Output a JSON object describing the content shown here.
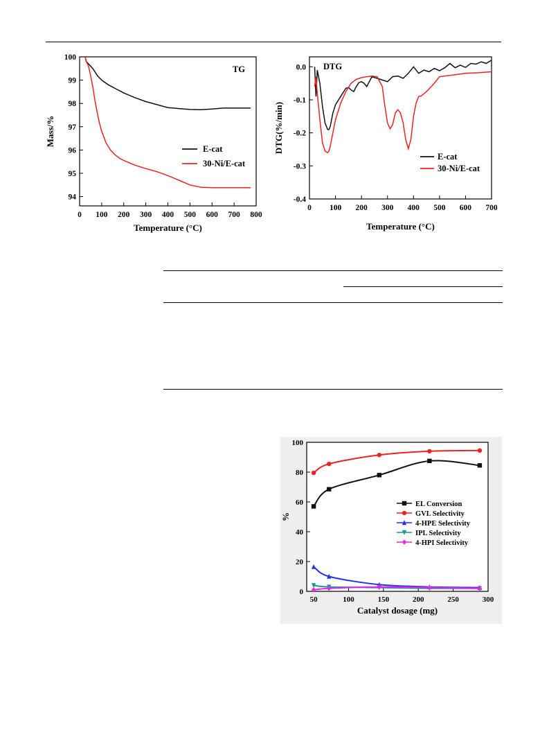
{
  "charts": {
    "tg": {
      "panel_label": "TG",
      "xlabel": "Temperature (°C)",
      "ylabel": "Mass/%",
      "xticks": [
        0,
        100,
        200,
        300,
        400,
        500,
        600,
        700,
        800
      ],
      "yticks": [
        94,
        95,
        96,
        97,
        98,
        99,
        100
      ]
    },
    "dtg": {
      "panel_label": "DTG",
      "xlabel": "Temperature (°C)",
      "ylabel": "DTG(%/min)",
      "xticks": [
        0,
        100,
        200,
        300,
        400,
        500,
        600,
        700
      ],
      "yticks": [
        "-0.4",
        "-0.3",
        "-0.2",
        "-0.1",
        "0.0"
      ]
    },
    "catalyst": {
      "xlabel": "Catalyst dosage (mg)",
      "ylabel": "%",
      "xticks": [
        50,
        100,
        150,
        200,
        250,
        300
      ],
      "yticks": [
        0,
        20,
        40,
        60,
        80,
        100
      ]
    }
  },
  "colors": {
    "black": "#111111",
    "red": "#ee2222",
    "blue": "#2233ee",
    "teal": "#119999",
    "magenta": "#ee22ee"
  },
  "chart_data": [
    {
      "type": "line",
      "title": "TG",
      "xlabel": "Temperature (°C)",
      "ylabel": "Mass/%",
      "xlim": [
        0,
        800
      ],
      "ylim": [
        93.6,
        100
      ],
      "legend_position": "lower-right",
      "series": [
        {
          "name": "E-cat",
          "color": "#111111",
          "x": [
            25,
            30,
            40,
            60,
            80,
            100,
            130,
            160,
            200,
            250,
            300,
            350,
            400,
            450,
            500,
            550,
            600,
            650,
            700,
            775
          ],
          "y": [
            100,
            99.8,
            99.7,
            99.5,
            99.2,
            99.0,
            98.8,
            98.65,
            98.45,
            98.25,
            98.08,
            97.95,
            97.82,
            97.78,
            97.74,
            97.73,
            97.76,
            97.8,
            97.8,
            97.8
          ]
        },
        {
          "name": "30-Ni/E-cat",
          "color": "#ee2222",
          "x": [
            25,
            30,
            40,
            50,
            60,
            70,
            80,
            90,
            100,
            120,
            140,
            160,
            180,
            200,
            250,
            300,
            350,
            400,
            450,
            500,
            550,
            600,
            650,
            700,
            775
          ],
          "y": [
            100,
            99.8,
            99.6,
            99.2,
            98.7,
            98.1,
            97.6,
            97.15,
            96.8,
            96.3,
            96.0,
            95.8,
            95.65,
            95.55,
            95.35,
            95.2,
            95.07,
            94.9,
            94.7,
            94.5,
            94.4,
            94.38,
            94.38,
            94.38,
            94.38
          ]
        }
      ]
    },
    {
      "type": "line",
      "title": "DTG",
      "xlabel": "Temperature (°C)",
      "ylabel": "DTG(%/min)",
      "xlim": [
        0,
        700
      ],
      "ylim": [
        -0.4,
        0.03
      ],
      "legend_position": "lower-right",
      "series": [
        {
          "name": "E-cat",
          "color": "#111111",
          "x": [
            20,
            25,
            30,
            40,
            50,
            60,
            70,
            75,
            80,
            90,
            100,
            120,
            140,
            150,
            160,
            170,
            180,
            190,
            200,
            210,
            220,
            240,
            260,
            280,
            300,
            320,
            340,
            360,
            380,
            400,
            420,
            440,
            460,
            480,
            500,
            520,
            540,
            560,
            580,
            600,
            620,
            640,
            660,
            680,
            700
          ],
          "y": [
            0.0,
            -0.09,
            -0.01,
            -0.05,
            -0.12,
            -0.17,
            -0.19,
            -0.19,
            -0.18,
            -0.14,
            -0.115,
            -0.09,
            -0.065,
            -0.063,
            -0.07,
            -0.075,
            -0.06,
            -0.048,
            -0.045,
            -0.05,
            -0.06,
            -0.03,
            -0.035,
            -0.04,
            -0.045,
            -0.03,
            -0.028,
            -0.035,
            -0.02,
            0.0,
            -0.02,
            -0.01,
            -0.015,
            -0.005,
            -0.012,
            -0.003,
            0.01,
            -0.003,
            0.005,
            -0.002,
            0.01,
            0.008,
            0.015,
            0.01,
            0.02
          ]
        },
        {
          "name": "30-Ni/E-cat",
          "color": "#ee2222",
          "x": [
            20,
            25,
            30,
            40,
            50,
            60,
            70,
            75,
            80,
            90,
            100,
            120,
            140,
            160,
            180,
            200,
            220,
            240,
            260,
            280,
            290,
            300,
            310,
            320,
            330,
            340,
            350,
            360,
            370,
            380,
            390,
            400,
            410,
            420,
            430,
            450,
            480,
            500,
            550,
            600,
            650,
            700
          ],
          "y": [
            -0.06,
            -0.03,
            -0.08,
            -0.16,
            -0.23,
            -0.255,
            -0.26,
            -0.255,
            -0.24,
            -0.2,
            -0.16,
            -0.11,
            -0.075,
            -0.05,
            -0.038,
            -0.033,
            -0.03,
            -0.028,
            -0.03,
            -0.06,
            -0.12,
            -0.17,
            -0.188,
            -0.175,
            -0.14,
            -0.13,
            -0.14,
            -0.17,
            -0.22,
            -0.248,
            -0.22,
            -0.15,
            -0.11,
            -0.09,
            -0.088,
            -0.075,
            -0.05,
            -0.03,
            -0.025,
            -0.02,
            -0.018,
            -0.015
          ]
        }
      ]
    },
    {
      "type": "scatter",
      "xlabel": "Catalyst dosage (mg)",
      "ylabel": "%",
      "xlim": [
        40,
        300
      ],
      "ylim": [
        0,
        100
      ],
      "legend_position": "center-right",
      "series": [
        {
          "name": "EL Conversion",
          "color": "#111111",
          "marker": "square",
          "x": [
            50,
            72,
            144,
            216,
            288
          ],
          "y": [
            57,
            68.5,
            78,
            87.5,
            84.5
          ]
        },
        {
          "name": "GVL Selectivity",
          "color": "#ee2222",
          "marker": "circle",
          "x": [
            50,
            72,
            144,
            216,
            288
          ],
          "y": [
            79.5,
            85.5,
            91.5,
            94,
            94.5
          ]
        },
        {
          "name": "4-HPE Selectivity",
          "color": "#2233ee",
          "marker": "triangle-up",
          "x": [
            50,
            72,
            144,
            216,
            288
          ],
          "y": [
            16.5,
            10,
            4.5,
            3,
            2.5
          ]
        },
        {
          "name": "IPL Selectivity",
          "color": "#119999",
          "marker": "triangle-down",
          "x": [
            50,
            72,
            144,
            216,
            288
          ],
          "y": [
            4,
            3,
            2.5,
            2,
            2
          ]
        },
        {
          "name": "4-HPI Selectivity",
          "color": "#ee22ee",
          "marker": "diamond",
          "x": [
            50,
            72,
            144,
            216,
            288
          ],
          "y": [
            1,
            2,
            3,
            2.5,
            2
          ]
        }
      ]
    }
  ]
}
